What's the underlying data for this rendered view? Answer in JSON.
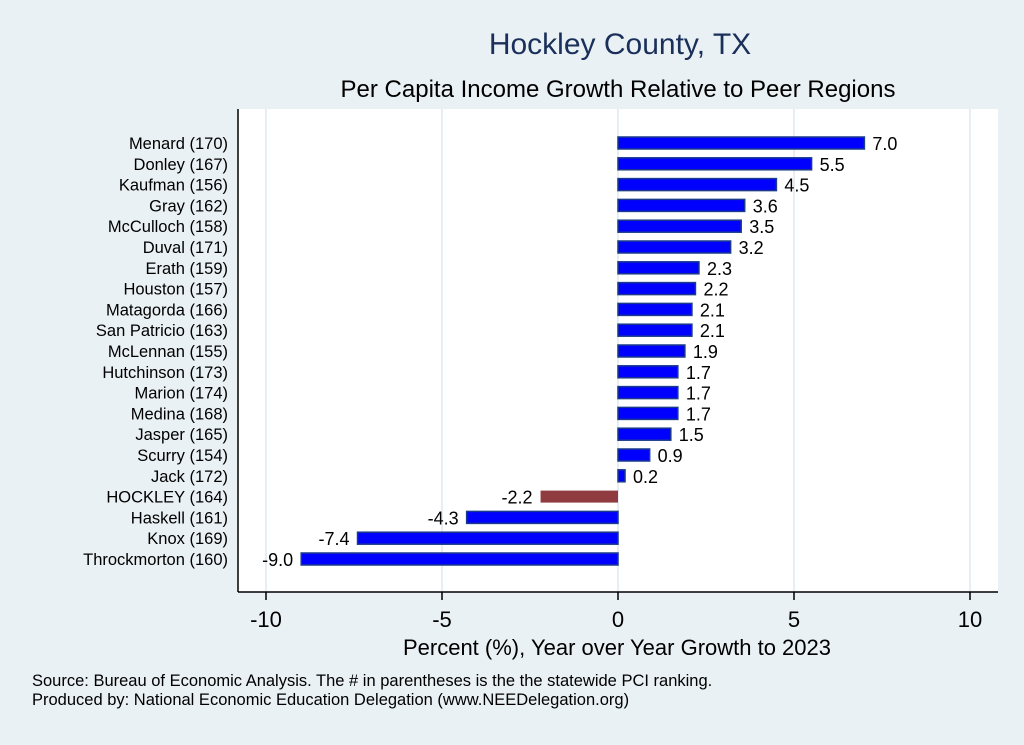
{
  "chart_data": {
    "type": "bar",
    "orientation": "horizontal",
    "title": "Hockley County, TX",
    "subtitle": "Per Capita Income Growth Relative to Peer Regions",
    "xlabel": "Percent (%), Year over Year Growth to 2023",
    "xlim": [
      -11,
      10.8
    ],
    "xticks": [
      -10,
      -5,
      0,
      5,
      10
    ],
    "xtick_labels": [
      "-10",
      "-5",
      "0",
      "5",
      "10"
    ],
    "grid": true,
    "categories": [
      "Menard (170)",
      "Donley (167)",
      "Kaufman (156)",
      "Gray (162)",
      "McCulloch (158)",
      "Duval (171)",
      "Erath (159)",
      "Houston (157)",
      "Matagorda (166)",
      "San Patricio (163)",
      "McLennan (155)",
      "Hutchinson (173)",
      "Marion (174)",
      "Medina (168)",
      "Jasper (165)",
      "Scurry (154)",
      "Jack (172)",
      "HOCKLEY (164)",
      "Haskell (161)",
      "Knox (169)",
      "Throckmorton (160)"
    ],
    "values": [
      7.0,
      5.5,
      4.5,
      3.6,
      3.5,
      3.2,
      2.3,
      2.2,
      2.1,
      2.1,
      1.9,
      1.7,
      1.7,
      1.7,
      1.5,
      0.9,
      0.2,
      -2.2,
      -4.3,
      -7.4,
      -9.0
    ],
    "value_labels": [
      "7.0",
      "5.5",
      "4.5",
      "3.6",
      "3.5",
      "3.2",
      "2.3",
      "2.2",
      "2.1",
      "2.1",
      "1.9",
      "1.7",
      "1.7",
      "1.7",
      "1.5",
      "0.9",
      "0.2",
      "-2.2",
      "-4.3",
      "-7.4",
      "-9.0"
    ],
    "highlight": "HOCKLEY (164)",
    "colors": {
      "bar": "#0000ff",
      "bar_edge": "#1a3a8a",
      "highlight": "#8f3b40",
      "title": "#1a2f5a"
    }
  },
  "notes": {
    "source": "Source: Bureau of Economic Analysis. The # in parentheses is the the statewide PCI ranking.",
    "produced": "Produced by: National Economic Education Delegation (www.NEEDelegation.org)"
  }
}
